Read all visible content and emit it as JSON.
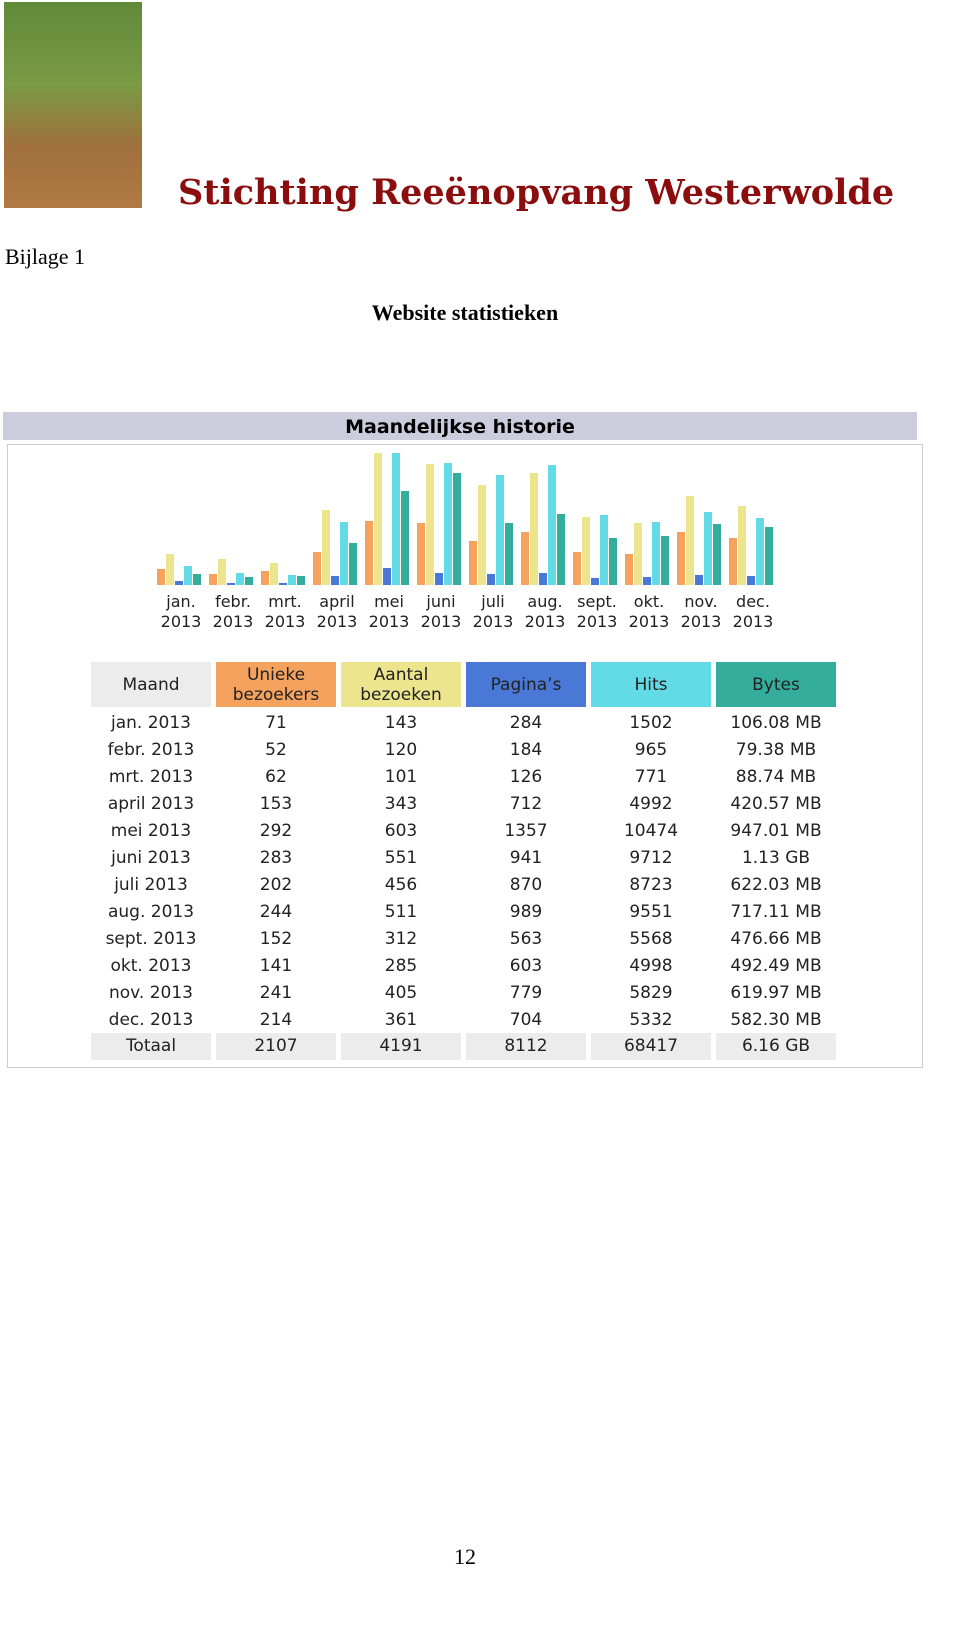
{
  "header": {
    "title": "Stichting Reeënopvang Westerwolde",
    "appendix": "Bijlage 1",
    "heading": "Website statistieken"
  },
  "chart_data": {
    "type": "bar",
    "title": "Maandelijkse historie",
    "categories": [
      "jan. 2013",
      "febr. 2013",
      "mrt. 2013",
      "april 2013",
      "mei 2013",
      "juni 2013",
      "juli 2013",
      "aug. 2013",
      "sept. 2013",
      "okt. 2013",
      "nov. 2013",
      "dec. 2013"
    ],
    "series": [
      {
        "name": "Unieke bezoekers",
        "color": "#f4a25e",
        "values": [
          71,
          52,
          62,
          153,
          292,
          283,
          202,
          244,
          152,
          141,
          241,
          214
        ]
      },
      {
        "name": "Aantal bezoeken",
        "color": "#ece58e",
        "values": [
          143,
          120,
          101,
          343,
          603,
          551,
          456,
          511,
          312,
          285,
          405,
          361
        ]
      },
      {
        "name": "Pagina’s",
        "color": "#4a78d6",
        "values": [
          284,
          184,
          126,
          712,
          1357,
          941,
          870,
          989,
          563,
          603,
          779,
          704
        ]
      },
      {
        "name": "Hits",
        "color": "#62dbe6",
        "values": [
          1502,
          965,
          771,
          4992,
          10474,
          9712,
          8723,
          9551,
          5568,
          4998,
          5829,
          5332
        ]
      },
      {
        "name": "Bytes",
        "color": "#34ad9c",
        "values": [
          106.08,
          79.38,
          88.74,
          420.57,
          947.01,
          1130,
          622.03,
          717.11,
          476.66,
          492.49,
          619.97,
          582.3
        ],
        "value_labels": [
          "106.08 MB",
          "79.38 MB",
          "88.74 MB",
          "420.57 MB",
          "947.01 MB",
          "1.13 GB",
          "622.03 MB",
          "717.11 MB",
          "476.66 MB",
          "492.49 MB",
          "619.97 MB",
          "582.30 MB"
        ]
      }
    ]
  },
  "table": {
    "first_header": "Maand",
    "total": {
      "label": "Totaal",
      "values": [
        2107,
        4191,
        8112,
        68417,
        "6.16 GB"
      ]
    }
  },
  "page_number": "12"
}
